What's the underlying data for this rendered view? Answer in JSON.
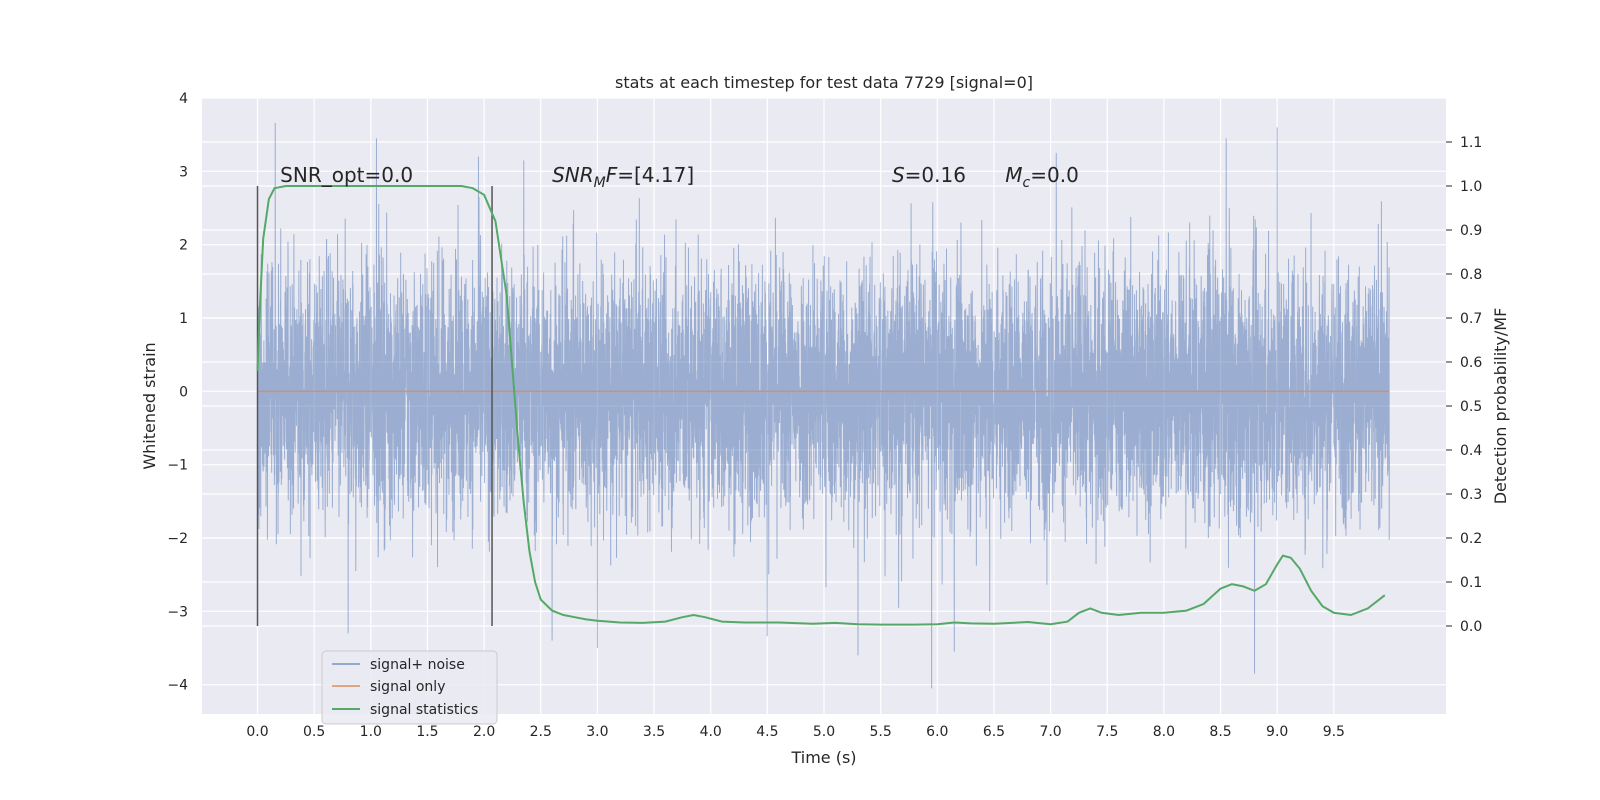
{
  "chart_data": {
    "type": "line",
    "title": "stats at each timestep for test data 7729 [signal=0]",
    "xlabel": "Time (s)",
    "ylabel": "Whitened strain",
    "ylabel_right": "Detection probability/MF",
    "xlim": [
      -0.49,
      10.49
    ],
    "ylim": [
      -4.4,
      4.0
    ],
    "ylim_right": [
      -0.2,
      1.2
    ],
    "x_ticks": [
      0.0,
      0.5,
      1.0,
      1.5,
      2.0,
      2.5,
      3.0,
      3.5,
      4.0,
      4.5,
      5.0,
      5.5,
      6.0,
      6.5,
      7.0,
      7.5,
      8.0,
      8.5,
      9.0,
      9.5
    ],
    "x_tick_labels": [
      "0.0",
      "0.5",
      "1.0",
      "1.5",
      "2.0",
      "2.5",
      "3.0",
      "3.5",
      "4.0",
      "4.5",
      "5.0",
      "5.5",
      "6.0",
      "6.5",
      "7.0",
      "7.5",
      "8.0",
      "8.5",
      "9.0",
      "9.5"
    ],
    "y_ticks": [
      -4,
      -3,
      -2,
      -1,
      0,
      1,
      2,
      3,
      4
    ],
    "y_tick_labels": [
      "−4",
      "−3",
      "−2",
      "−1",
      "0",
      "1",
      "2",
      "3",
      "4"
    ],
    "y_right_ticks": [
      0.0,
      0.1,
      0.2,
      0.3,
      0.4,
      0.5,
      0.6,
      0.7,
      0.8,
      0.9,
      1.0,
      1.1
    ],
    "y_right_tick_labels": [
      "0.0",
      "0.1",
      "0.2",
      "0.3",
      "0.4",
      "0.5",
      "0.6",
      "0.7",
      "0.8",
      "0.9",
      "1.0",
      "1.1"
    ],
    "grid": true,
    "legend_position": "lower-left",
    "annotations": [
      {
        "text": "SNR_opt=0.0",
        "x": 0.2,
        "y": 2.95
      },
      {
        "text_parts": [
          "SNR",
          "M",
          "F=[4.17]"
        ],
        "x": 2.6,
        "y": 2.95
      },
      {
        "text_parts": [
          "S",
          "=0.16"
        ],
        "x": 5.6,
        "y": 2.95
      },
      {
        "text_parts": [
          "M",
          "c",
          "=0.0"
        ],
        "x": 6.6,
        "y": 2.95
      }
    ],
    "vlines": [
      {
        "x": 0.0,
        "ymin": -3.2,
        "ymax": 2.8
      },
      {
        "x": 2.07,
        "ymin": -3.2,
        "ymax": 2.8
      }
    ],
    "series": [
      {
        "name": "signal+ noise",
        "color": "#4c72b0",
        "alpha": 0.5,
        "axis": "left",
        "x_range": [
          0.0,
          9.99
        ],
        "sample_rate": 800,
        "envelope_typical": [
          -1.6,
          1.6
        ],
        "peaks": [
          {
            "x": 0.8,
            "y": -3.3
          },
          {
            "x": 1.05,
            "y": 3.45
          },
          {
            "x": 1.95,
            "y": 3.2
          },
          {
            "x": 2.35,
            "y": 3.15
          },
          {
            "x": 2.6,
            "y": -3.4
          },
          {
            "x": 3.0,
            "y": -3.5
          },
          {
            "x": 5.3,
            "y": -3.6
          },
          {
            "x": 5.95,
            "y": -4.05
          },
          {
            "x": 6.15,
            "y": -3.55
          },
          {
            "x": 7.05,
            "y": 3.25
          },
          {
            "x": 8.55,
            "y": 3.45
          },
          {
            "x": 8.8,
            "y": -3.85
          },
          {
            "x": 9.0,
            "y": 3.6
          }
        ]
      },
      {
        "name": "signal only",
        "color": "#dd8452",
        "axis": "left",
        "x": [
          0.0,
          9.99
        ],
        "y": [
          0.0,
          0.0
        ]
      },
      {
        "name": "signal statistics",
        "color": "#55a868",
        "axis": "right",
        "x": [
          0.0,
          0.02,
          0.05,
          0.1,
          0.15,
          0.25,
          0.5,
          1.0,
          1.5,
          1.8,
          1.9,
          2.0,
          2.1,
          2.2,
          2.3,
          2.35,
          2.4,
          2.45,
          2.5,
          2.6,
          2.7,
          2.8,
          2.9,
          3.0,
          3.2,
          3.4,
          3.6,
          3.75,
          3.85,
          3.95,
          4.1,
          4.3,
          4.6,
          4.9,
          5.1,
          5.3,
          5.5,
          5.8,
          6.0,
          6.15,
          6.3,
          6.5,
          6.8,
          7.0,
          7.15,
          7.25,
          7.35,
          7.45,
          7.6,
          7.8,
          8.0,
          8.2,
          8.35,
          8.5,
          8.6,
          8.7,
          8.8,
          8.9,
          9.0,
          9.05,
          9.12,
          9.2,
          9.3,
          9.4,
          9.5,
          9.65,
          9.8,
          9.95
        ],
        "y": [
          0.58,
          0.72,
          0.88,
          0.97,
          0.995,
          1.0,
          1.0,
          1.0,
          1.0,
          1.0,
          0.995,
          0.98,
          0.92,
          0.75,
          0.42,
          0.28,
          0.17,
          0.1,
          0.06,
          0.035,
          0.025,
          0.02,
          0.015,
          0.012,
          0.008,
          0.007,
          0.01,
          0.02,
          0.025,
          0.02,
          0.01,
          0.008,
          0.008,
          0.005,
          0.007,
          0.004,
          0.003,
          0.003,
          0.004,
          0.008,
          0.006,
          0.005,
          0.009,
          0.004,
          0.01,
          0.03,
          0.04,
          0.03,
          0.025,
          0.03,
          0.03,
          0.035,
          0.05,
          0.085,
          0.095,
          0.09,
          0.08,
          0.095,
          0.14,
          0.16,
          0.155,
          0.13,
          0.08,
          0.045,
          0.03,
          0.025,
          0.04,
          0.07
        ]
      }
    ]
  }
}
